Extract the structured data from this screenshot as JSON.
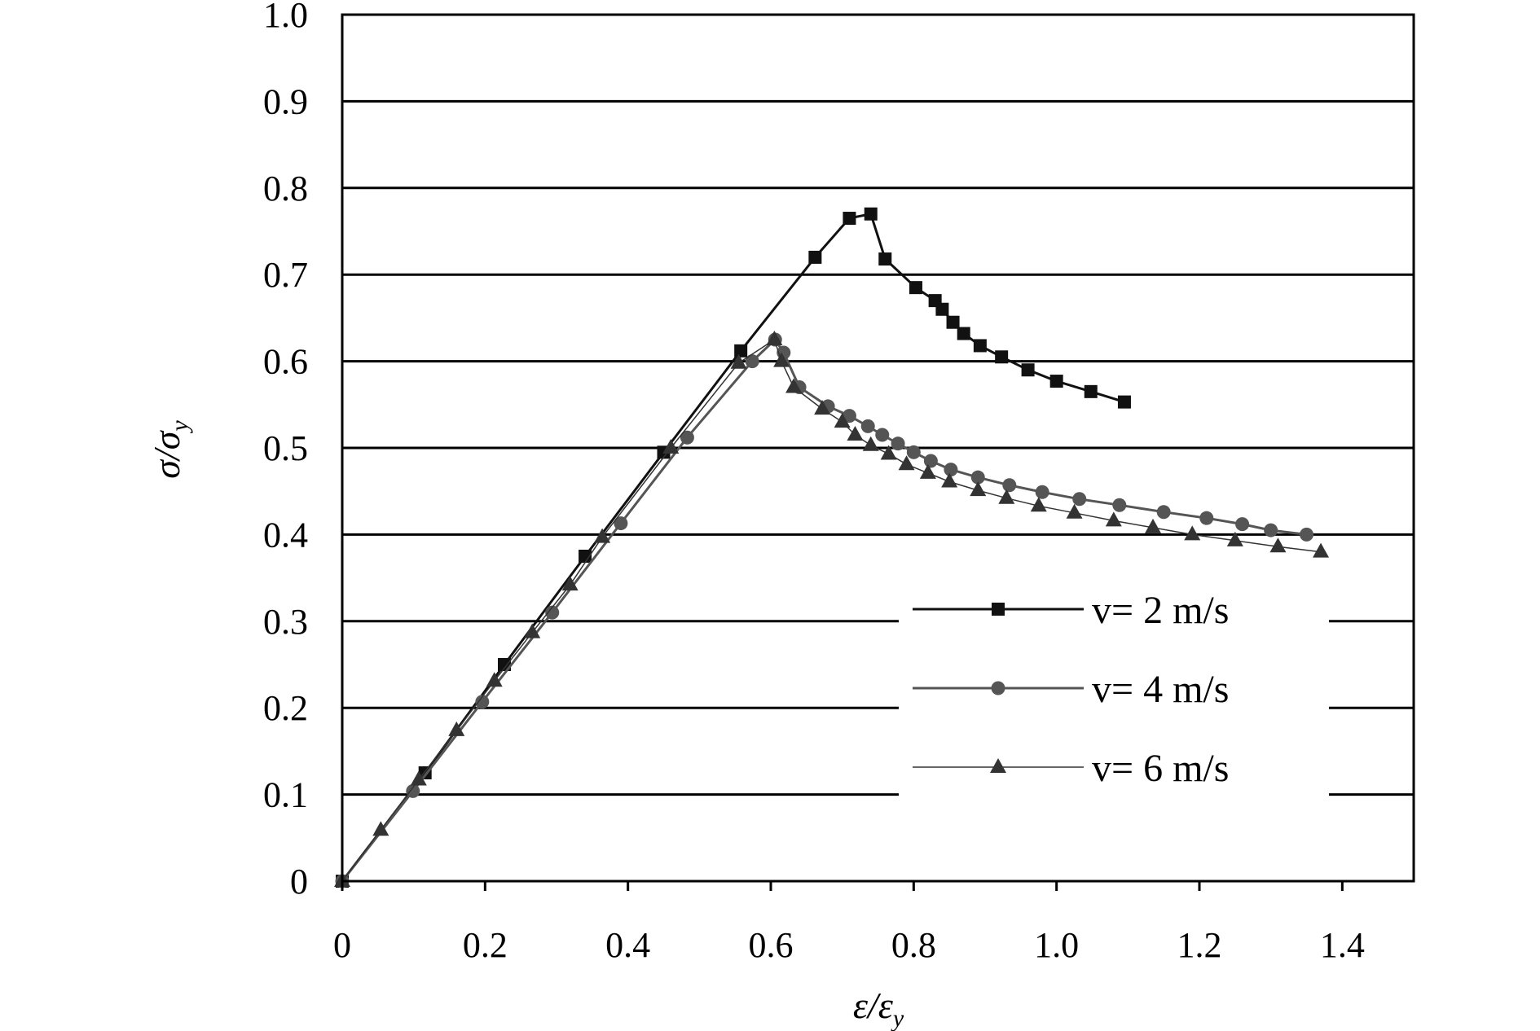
{
  "chart_data": {
    "type": "line",
    "xlabel": {
      "main": "ε/ε",
      "sub": "y"
    },
    "ylabel": {
      "main": "σ/σ",
      "sub": "y"
    },
    "xlim": [
      0,
      1.5
    ],
    "ylim": [
      0,
      1.0
    ],
    "xticks": [
      "0",
      "0.2",
      "0.4",
      "0.6",
      "0.8",
      "1.0",
      "1.2",
      "1.4"
    ],
    "yticks": [
      "0",
      "0.1",
      "0.2",
      "0.3",
      "0.4",
      "0.5",
      "0.6",
      "0.7",
      "0.8",
      "0.9",
      "1.0"
    ],
    "grid": "horizontal",
    "legend_position": "bottom-right",
    "series": [
      {
        "name": "v= 2 m/s",
        "marker": "square",
        "color": "#111111",
        "line_width": 3,
        "x": [
          0,
          0.116,
          0.227,
          0.34,
          0.45,
          0.558,
          0.662,
          0.71,
          0.74,
          0.76,
          0.803,
          0.83,
          0.84,
          0.855,
          0.87,
          0.893,
          0.923,
          0.96,
          1.0,
          1.048,
          1.095
        ],
        "y": [
          0,
          0.125,
          0.25,
          0.375,
          0.495,
          0.612,
          0.72,
          0.765,
          0.77,
          0.718,
          0.685,
          0.67,
          0.66,
          0.645,
          0.632,
          0.618,
          0.605,
          0.59,
          0.577,
          0.565,
          0.553
        ]
      },
      {
        "name": "v= 4 m/s",
        "marker": "circle",
        "color": "#555555",
        "line_width": 3,
        "x": [
          0,
          0.099,
          0.196,
          0.294,
          0.39,
          0.483,
          0.574,
          0.606,
          0.618,
          0.64,
          0.68,
          0.71,
          0.736,
          0.756,
          0.778,
          0.8,
          0.824,
          0.852,
          0.89,
          0.934,
          0.98,
          1.032,
          1.088,
          1.15,
          1.21,
          1.26,
          1.3,
          1.35
        ],
        "y": [
          0,
          0.104,
          0.207,
          0.31,
          0.413,
          0.512,
          0.6,
          0.625,
          0.61,
          0.57,
          0.548,
          0.537,
          0.525,
          0.515,
          0.505,
          0.495,
          0.485,
          0.475,
          0.466,
          0.457,
          0.449,
          0.441,
          0.434,
          0.426,
          0.419,
          0.412,
          0.405,
          0.4
        ]
      },
      {
        "name": "v= 6 m/s",
        "marker": "triangle",
        "color": "#333333",
        "line_width": 1.5,
        "x": [
          0,
          0.054,
          0.107,
          0.16,
          0.213,
          0.266,
          0.319,
          0.364,
          0.46,
          0.555,
          0.605,
          0.615,
          0.632,
          0.672,
          0.7,
          0.718,
          0.74,
          0.765,
          0.79,
          0.82,
          0.85,
          0.89,
          0.93,
          0.975,
          1.025,
          1.08,
          1.135,
          1.19,
          1.25,
          1.31,
          1.37
        ],
        "y": [
          0,
          0.059,
          0.117,
          0.174,
          0.231,
          0.287,
          0.342,
          0.397,
          0.5,
          0.598,
          0.625,
          0.6,
          0.57,
          0.545,
          0.53,
          0.515,
          0.503,
          0.493,
          0.481,
          0.471,
          0.461,
          0.451,
          0.442,
          0.433,
          0.425,
          0.416,
          0.408,
          0.4,
          0.393,
          0.386,
          0.38
        ]
      }
    ]
  }
}
